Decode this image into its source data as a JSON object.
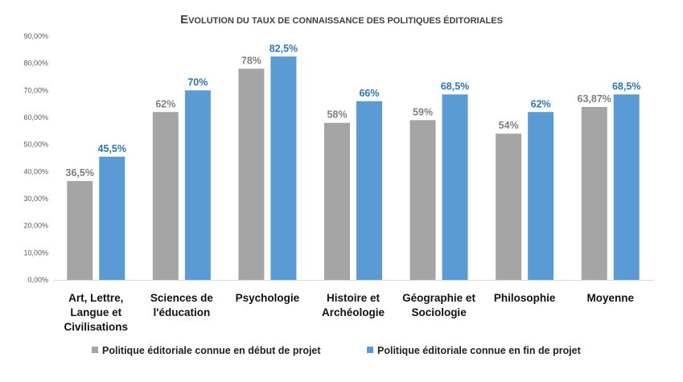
{
  "chart_data": {
    "type": "bar",
    "title": "Evolution du taux de connaissance des politiques éditoriales",
    "title_display": "EVOLUTION DU TAUX DE CONNAISSANCE DES POLITIQUES ÉDITORIALES",
    "xlabel": "",
    "ylabel": "",
    "ylim": [
      0,
      90
    ],
    "ytick_values": [
      0,
      10,
      20,
      30,
      40,
      50,
      60,
      70,
      80,
      90
    ],
    "ytick_labels": [
      "0,00%",
      "10,00%",
      "20,00%",
      "30,00%",
      "40,00%",
      "50,00%",
      "60,00%",
      "70,00%",
      "80,00%",
      "90,00%"
    ],
    "grid": false,
    "legend_position": "bottom",
    "categories": [
      [
        "Art, Lettre,",
        "Langue et",
        "Civilisations"
      ],
      [
        "Sciences de",
        "l'éducation"
      ],
      [
        "Psychologie"
      ],
      [
        "Histoire et",
        "Archéologie"
      ],
      [
        "Géographie et",
        "Sociologie"
      ],
      [
        "Philosophie"
      ],
      [
        "Moyenne"
      ]
    ],
    "series": [
      {
        "name": "Politique éditoriale connue en début de projet",
        "color": "#a5a5a5",
        "label_color": "#7f7f7f",
        "values": [
          36.5,
          62,
          78,
          58,
          59,
          54,
          63.87
        ],
        "labels": [
          "36,5%",
          "62%",
          "78%",
          "58%",
          "59%",
          "54%",
          "63,87%"
        ]
      },
      {
        "name": "Politique éditoriale connue en fin de projet",
        "color": "#5b9bd5",
        "label_color": "#2e75b6",
        "values": [
          45.5,
          70,
          82.5,
          66,
          68.5,
          62,
          68.5
        ],
        "labels": [
          "45,5%",
          "70%",
          "82,5%",
          "66%",
          "68,5%",
          "62%",
          "68,5%"
        ]
      }
    ]
  }
}
